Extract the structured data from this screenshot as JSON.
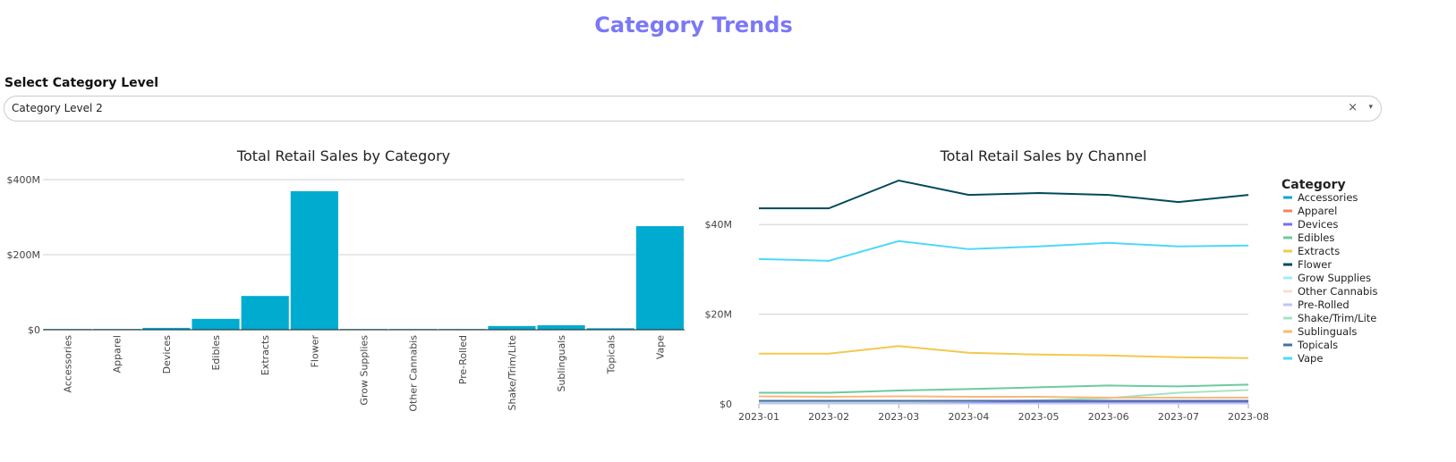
{
  "header": {
    "title": "Category Trends"
  },
  "filter": {
    "label": "Select Category Level",
    "value": "Category Level 2",
    "clear_icon": "×",
    "caret_icon": "▾"
  },
  "chart_data": [
    {
      "type": "bar",
      "title": "Total Retail Sales by Category",
      "xlabel": "",
      "ylabel": "",
      "ylim": [
        0,
        400
      ],
      "yticks": [
        "$0",
        "$200M",
        "$400M"
      ],
      "ytick_values": [
        0,
        200,
        400
      ],
      "categories": [
        "Accessories",
        "Apparel",
        "Devices",
        "Edibles",
        "Extracts",
        "Flower",
        "Grow Supplies",
        "Other Cannabis",
        "Pre-Rolled",
        "Shake/Trim/Lite",
        "Sublinguals",
        "Topicals",
        "Vape"
      ],
      "values": [
        2,
        2,
        5,
        29,
        90,
        369,
        2,
        2,
        2,
        10,
        12,
        4,
        276
      ],
      "color": "#00abd0",
      "units": "$M"
    },
    {
      "type": "line",
      "title": "Total Retail Sales by Channel",
      "legend_title": "Category",
      "legend_position": "right",
      "ylim": [
        0,
        50
      ],
      "yticks": [
        "$0",
        "$20M",
        "$40M"
      ],
      "ytick_values": [
        0,
        20,
        40
      ],
      "x": [
        "2023-01",
        "2023-02",
        "2023-03",
        "2023-04",
        "2023-05",
        "2023-06",
        "2023-07",
        "2023-08"
      ],
      "series": [
        {
          "name": "Accessories",
          "color": "#0fa5d2",
          "values": [
            0.3,
            0.3,
            0.3,
            0.3,
            0.3,
            0.3,
            0.3,
            0.3
          ]
        },
        {
          "name": "Apparel",
          "color": "#f4845f",
          "values": [
            0.2,
            0.2,
            0.2,
            0.2,
            0.2,
            0.2,
            0.2,
            0.2
          ]
        },
        {
          "name": "Devices",
          "color": "#7b6cf6",
          "values": [
            0.5,
            0.5,
            0.6,
            0.5,
            0.5,
            0.5,
            0.5,
            0.5
          ]
        },
        {
          "name": "Edibles",
          "color": "#6ccaa0",
          "values": [
            2.5,
            2.5,
            3.0,
            3.3,
            3.7,
            4.1,
            3.9,
            4.3
          ]
        },
        {
          "name": "Extracts",
          "color": "#f2c94c",
          "values": [
            11.2,
            11.2,
            12.9,
            11.4,
            11.0,
            10.8,
            10.4,
            10.2
          ]
        },
        {
          "name": "Flower",
          "color": "#004a59",
          "values": [
            43.6,
            43.6,
            49.8,
            46.6,
            47.0,
            46.6,
            45.0,
            46.6
          ]
        },
        {
          "name": "Grow Supplies",
          "color": "#a0ecfa",
          "values": [
            0.1,
            0.1,
            0.1,
            0.1,
            0.1,
            0.1,
            0.1,
            0.1
          ]
        },
        {
          "name": "Other Cannabis",
          "color": "#fddcd0",
          "values": [
            0.1,
            0.1,
            0.1,
            0.1,
            0.1,
            0.1,
            0.1,
            0.1
          ]
        },
        {
          "name": "Pre-Rolled",
          "color": "#c6c3f5",
          "values": [
            0.1,
            0.1,
            0.1,
            0.1,
            0.1,
            0.1,
            0.1,
            0.1
          ]
        },
        {
          "name": "Shake/Trim/Lite",
          "color": "#a8e0c8",
          "values": [
            0.5,
            0.5,
            0.5,
            0.6,
            0.8,
            1.3,
            2.5,
            3.1
          ]
        },
        {
          "name": "Sublinguals",
          "color": "#f9b87a",
          "values": [
            1.7,
            1.6,
            1.7,
            1.6,
            1.6,
            1.4,
            1.4,
            1.4
          ]
        },
        {
          "name": "Topicals",
          "color": "#4a6fa5",
          "values": [
            0.7,
            0.7,
            0.7,
            0.7,
            0.7,
            0.7,
            0.7,
            0.7
          ]
        },
        {
          "name": "Vape",
          "color": "#4dd8f8",
          "values": [
            32.3,
            31.9,
            36.3,
            34.5,
            35.1,
            35.9,
            35.1,
            35.3
          ]
        }
      ]
    }
  ]
}
